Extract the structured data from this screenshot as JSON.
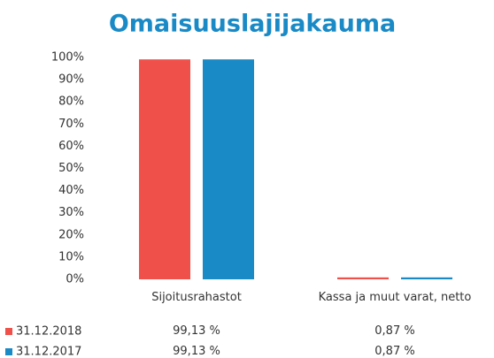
{
  "chart_data": {
    "type": "bar",
    "title": "Omaisuuslajijakauma",
    "categories": [
      "Sijoitusrahastot",
      "Kassa ja muut varat, netto"
    ],
    "series": [
      {
        "name": "31.12.2018",
        "color": "#f0504a",
        "values": [
          99.13,
          0.87
        ],
        "value_labels": [
          "99,13 %",
          "0,87 %"
        ]
      },
      {
        "name": "31.12.2017",
        "color": "#1a8ac6",
        "values": [
          99.13,
          0.87
        ],
        "value_labels": [
          "99,13 %",
          "0,87 %"
        ]
      }
    ],
    "ylim": [
      0,
      100
    ],
    "yticks": [
      {
        "value": 0,
        "label": "0%"
      },
      {
        "value": 10,
        "label": "10%"
      },
      {
        "value": 20,
        "label": "20%"
      },
      {
        "value": 30,
        "label": "30%"
      },
      {
        "value": 40,
        "label": "40%"
      },
      {
        "value": 50,
        "label": "50%"
      },
      {
        "value": 60,
        "label": "60%"
      },
      {
        "value": 70,
        "label": "70%"
      },
      {
        "value": 80,
        "label": "80%"
      },
      {
        "value": 90,
        "label": "90%"
      },
      {
        "value": 100,
        "label": "100%"
      }
    ],
    "grid": false
  }
}
